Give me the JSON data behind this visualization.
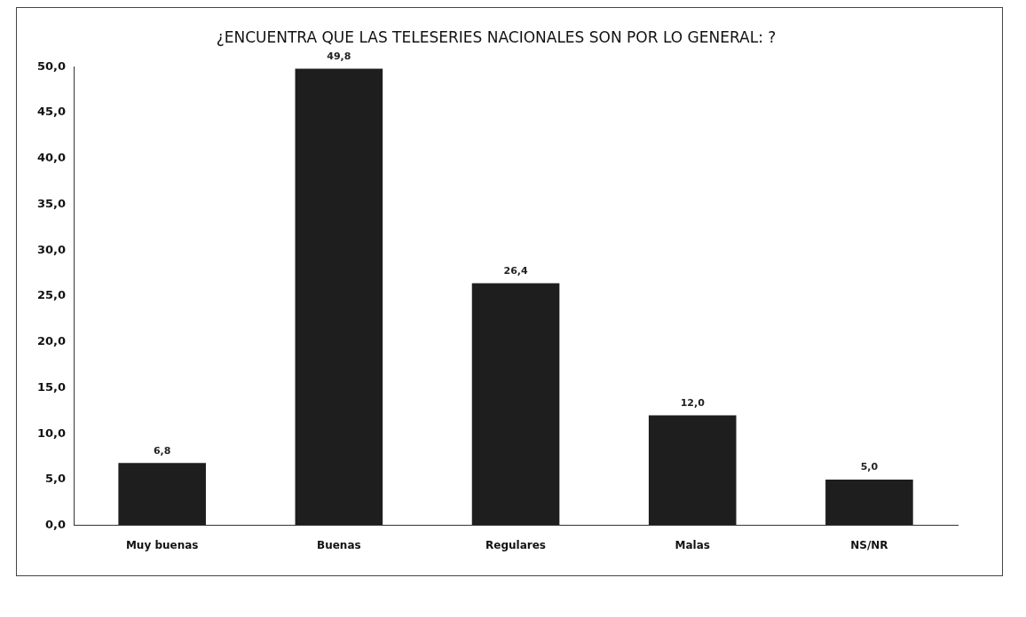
{
  "chart_data": {
    "type": "bar",
    "title": "¿ENCUENTRA QUE LAS TELESERIES NACIONALES SON POR LO GENERAL: ?",
    "categories": [
      "Muy buenas",
      "Buenas",
      "Regulares",
      "Malas",
      "NS/NR"
    ],
    "values": [
      6.8,
      49.8,
      26.4,
      12.0,
      5.0
    ],
    "value_labels": [
      "6,8",
      "49,8",
      "26,4",
      "12,0",
      "5,0"
    ],
    "color": "#1e1e1e",
    "ylim": [
      0,
      50
    ],
    "yticks": [
      {
        "value": 0,
        "label": "0,0"
      },
      {
        "value": 5,
        "label": "5,0"
      },
      {
        "value": 10,
        "label": "10,0"
      },
      {
        "value": 15,
        "label": "15,0"
      },
      {
        "value": 20,
        "label": "20,0"
      },
      {
        "value": 25,
        "label": "25,0"
      },
      {
        "value": 30,
        "label": "30,0"
      },
      {
        "value": 35,
        "label": "35,0"
      },
      {
        "value": 40,
        "label": "40,0"
      },
      {
        "value": 45,
        "label": "45,0"
      },
      {
        "value": 50,
        "label": "50,0"
      }
    ],
    "grid": false,
    "legend": false
  }
}
